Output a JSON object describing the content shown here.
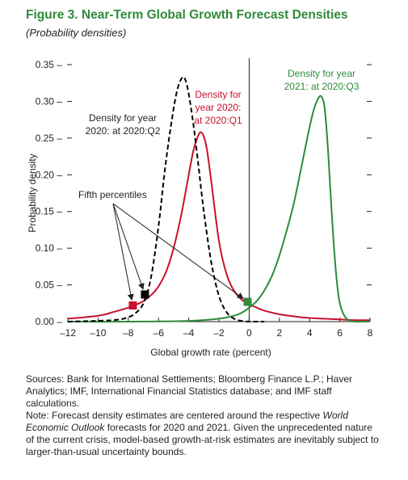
{
  "header": {
    "title": "Figure 3. Near-Term Global Growth Forecast Densities",
    "subtitle": "(Probability densities)"
  },
  "chart_data": {
    "type": "line",
    "title": "Figure 3. Near-Term Global Growth Forecast Densities",
    "subtitle": "(Probability densities)",
    "xlabel": "Global growth rate (percent)",
    "ylabel": "Probability density",
    "xlim": [
      -12,
      8
    ],
    "ylim": [
      0,
      0.35
    ],
    "xticks": [
      -12,
      -10,
      -8,
      -6,
      -4,
      -2,
      0,
      2,
      4,
      6,
      8
    ],
    "xtick_labels": [
      "–12",
      "–10",
      "–8",
      "–6",
      "–4",
      "–2",
      "0",
      "2",
      "4",
      "6",
      "8"
    ],
    "yticks": [
      0,
      0.05,
      0.1,
      0.15,
      0.2,
      0.25,
      0.3,
      0.35
    ],
    "ytick_labels": [
      "0.00",
      "0.05",
      "0.10",
      "0.15",
      "0.20",
      "0.25",
      "0.30",
      "0.35"
    ],
    "vertical_line_x": 0,
    "series": [
      {
        "label": [
          "Density for year",
          "2020: at 2020:Q2"
        ],
        "color": "#000000",
        "dash": true,
        "x": [
          -12,
          -9,
          -8,
          -7.5,
          -7,
          -6.5,
          -6,
          -5.5,
          -5,
          -4.7,
          -4.4,
          -4.2,
          -4,
          -3.7,
          -3.4,
          -3,
          -2.5,
          -2,
          -1.5,
          -1,
          -0.5,
          0,
          0.5,
          1
        ],
        "y": [
          0,
          0.002,
          0.006,
          0.012,
          0.025,
          0.06,
          0.13,
          0.22,
          0.29,
          0.32,
          0.333,
          0.328,
          0.31,
          0.27,
          0.22,
          0.15,
          0.08,
          0.035,
          0.013,
          0.004,
          0.001,
          0,
          0,
          0
        ]
      },
      {
        "label": [
          "Density for",
          "year 2020:",
          "at 2020:Q1"
        ],
        "color": "#c8102e",
        "dash": false,
        "x": [
          -12,
          -10,
          -9,
          -8,
          -7.5,
          -7,
          -6.5,
          -6,
          -5.5,
          -5,
          -4.5,
          -4,
          -3.7,
          -3.4,
          -3.2,
          -3,
          -2.8,
          -2.5,
          -2,
          -1.5,
          -1,
          -0.5,
          0,
          0.5,
          1,
          2,
          3,
          4,
          5,
          6,
          7,
          8
        ],
        "y": [
          0.004,
          0.008,
          0.013,
          0.019,
          0.023,
          0.028,
          0.036,
          0.048,
          0.068,
          0.1,
          0.145,
          0.2,
          0.232,
          0.252,
          0.258,
          0.252,
          0.235,
          0.19,
          0.11,
          0.065,
          0.042,
          0.03,
          0.024,
          0.019,
          0.015,
          0.01,
          0.007,
          0.005,
          0.004,
          0.003,
          0.002,
          0.002
        ]
      },
      {
        "label": [
          "Density for year",
          "2021: at 2020:Q3"
        ],
        "color": "#2f8a3a",
        "dash": false,
        "x": [
          -12,
          -8,
          -4,
          -2,
          -1,
          -0.5,
          0,
          0.5,
          1,
          1.5,
          2,
          2.5,
          3,
          3.5,
          4,
          4.3,
          4.6,
          4.8,
          5,
          5.2,
          5.4,
          5.6,
          5.8,
          6,
          6.3,
          6.6,
          7,
          8
        ],
        "y": [
          0,
          0,
          0.001,
          0.004,
          0.008,
          0.012,
          0.019,
          0.028,
          0.042,
          0.062,
          0.09,
          0.125,
          0.165,
          0.215,
          0.265,
          0.29,
          0.305,
          0.306,
          0.29,
          0.24,
          0.17,
          0.105,
          0.055,
          0.025,
          0.008,
          0.002,
          0,
          0
        ]
      }
    ],
    "fifth_percentiles": {
      "label": "Fifth percentiles",
      "markers": [
        {
          "x": -7.7,
          "y": 0.022,
          "color": "#c8102e"
        },
        {
          "x": -6.9,
          "y": 0.037,
          "color": "#000000"
        },
        {
          "x": -0.1,
          "y": 0.027,
          "color": "#2f8a3a"
        }
      ]
    }
  },
  "notes": {
    "sources": "Sources: Bank for International Settlements; Bloomberg Finance L.P.; Haver Analytics; IMF, International Financial Statistics database; and IMF staff calculations.",
    "note_prefix": "Note: Forecast density estimates are centered around the respective ",
    "note_italic": "World Economic Outlook",
    "note_suffix": " forecasts for 2020 and 2021. Given the unprecedented nature of the current crisis, model-based growth-at-risk estimates are inevitably subject to larger-than-usual uncertainty bounds."
  }
}
